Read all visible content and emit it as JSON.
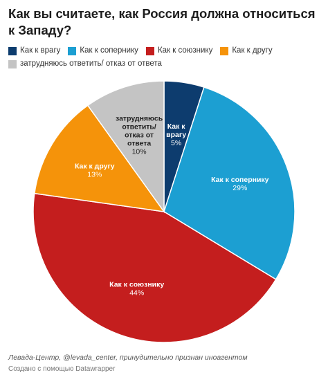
{
  "title": "Как вы считаете, как Россия должна относиться к Западу?",
  "source": "Левада-Центр, @levada_center, принудительно признан иноагентом",
  "credit": "Создано с помощью Datawrapper",
  "chart_data": {
    "type": "pie",
    "title": "Как вы считаете, как Россия должна относиться к Западу?",
    "legend_position": "top",
    "slices": [
      {
        "label": "Как к врагу",
        "value": 5,
        "color": "#0d3c6e",
        "label_color": "#ffffff",
        "label_lines": [
          "Как к",
          "врагу",
          "5%"
        ]
      },
      {
        "label": "Как к сопернику",
        "value": 29,
        "color": "#1c9fd2",
        "label_color": "#ffffff",
        "label_lines": [
          "Как к сопернику",
          "29%"
        ]
      },
      {
        "label": "Как к союзнику",
        "value": 44,
        "color": "#c41e1e",
        "label_color": "#ffffff",
        "label_lines": [
          "Как к союзнику",
          "44%"
        ]
      },
      {
        "label": "Как к другу",
        "value": 13,
        "color": "#f5930a",
        "label_color": "#ffffff",
        "label_lines": [
          "Как к другу",
          "13%"
        ]
      },
      {
        "label": "затрудняюсь ответить/ отказ от ответа",
        "value": 10,
        "color": "#c4c4c4",
        "label_color": "#222222",
        "label_lines": [
          "затрудняюсь",
          "ответить/",
          "отказ от",
          "ответа",
          "10%"
        ]
      }
    ]
  }
}
